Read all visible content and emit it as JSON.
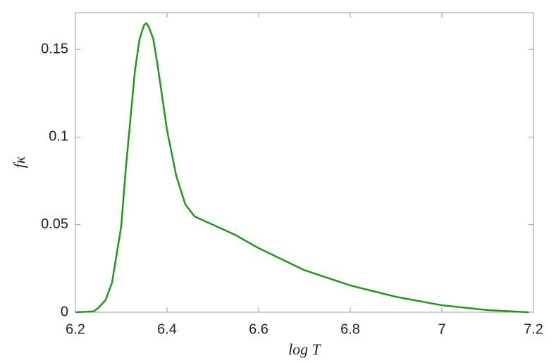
{
  "chart_data": {
    "type": "line",
    "xlabel": "log T",
    "ylabel": "fκ",
    "x": [
      6.2,
      6.24,
      6.25,
      6.266,
      6.28,
      6.3,
      6.31,
      6.32,
      6.33,
      6.34,
      6.35,
      6.355,
      6.36,
      6.37,
      6.38,
      6.39,
      6.4,
      6.42,
      6.44,
      6.46,
      6.5,
      6.55,
      6.6,
      6.7,
      6.8,
      6.9,
      7.0,
      7.1,
      7.19
    ],
    "series": [
      {
        "color": "#22961f",
        "values": [
          0,
          0.0005,
          0.0025,
          0.007,
          0.017,
          0.049,
          0.082,
          0.11,
          0.138,
          0.156,
          0.164,
          0.165,
          0.163,
          0.156,
          0.14,
          0.122,
          0.104,
          0.078,
          0.0615,
          0.0547,
          0.05,
          0.044,
          0.0366,
          0.024,
          0.0153,
          0.0088,
          0.004,
          0.0012,
          0
        ]
      }
    ],
    "xlim": [
      6.2,
      7.2
    ],
    "xticks": [
      6.2,
      6.4,
      6.6,
      6.8,
      7,
      7.2
    ],
    "ylim": [
      0,
      0.171
    ],
    "yticks": [
      0,
      0.05,
      0.1,
      0.15
    ]
  }
}
